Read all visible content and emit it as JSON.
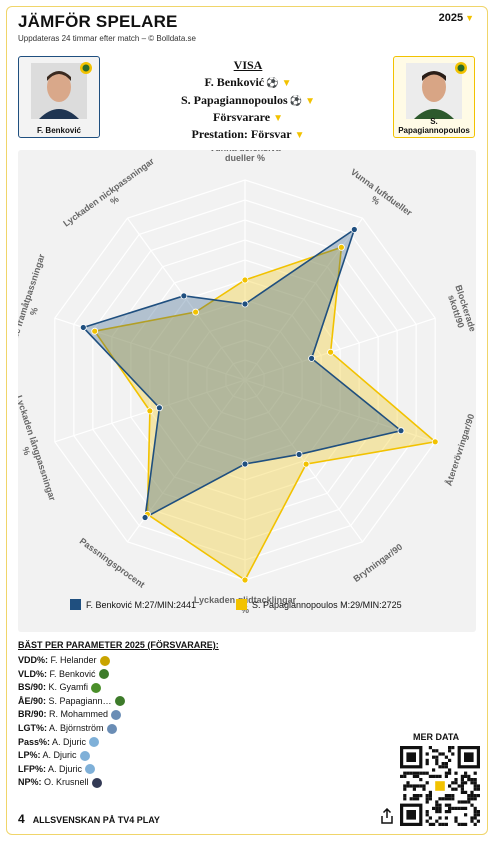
{
  "header": {
    "title": "JÄMFÖR SPELARE",
    "subtitle": "Uppdateras 24 timmar efter match – © Bolldata.se",
    "season": "2025"
  },
  "players": {
    "left": {
      "name": "F. Benković",
      "color": "#1f4f7f"
    },
    "right": {
      "name": "S. Papagiannopoulos",
      "color": "#f2c200"
    }
  },
  "visa": {
    "heading": "VISA",
    "player1": "F. Benković",
    "player2": "S. Papagiannopoulos",
    "position": "Försvarare",
    "prestation": "Prestation: Försvar"
  },
  "chart_data": {
    "type": "radar",
    "axes": [
      "Vunna defensiva dueller %",
      "Vunna luftdueller %",
      "Blockerade skott/90",
      "Återerövringar/90",
      "Brytningar/90",
      "Lyckaden glidtacklingar %",
      "Passningsprocent",
      "Lyckaden långpassningar %",
      "Lyckade framåtpassningar %",
      "Lyckaden nickpassningar %"
    ],
    "range": [
      0,
      1
    ],
    "series": [
      {
        "name": "F. Benković M:27/MIN:2441",
        "color": "#1f4f7f",
        "values": [
          0.38,
          0.93,
          0.35,
          0.82,
          0.46,
          0.42,
          0.85,
          0.45,
          0.85,
          0.52
        ]
      },
      {
        "name": "S. Papagiannopoulos M:29/MIN:2725",
        "color": "#f2c200",
        "values": [
          0.5,
          0.82,
          0.45,
          1.0,
          0.52,
          1.0,
          0.83,
          0.5,
          0.79,
          0.42
        ]
      }
    ]
  },
  "best": {
    "heading": "BÄST PER PARAMETER 2025 (FÖRSVARARE):",
    "rows": [
      {
        "key": "VDD%:",
        "value": "F. Helander",
        "club": "#c9a400"
      },
      {
        "key": "VLD%:",
        "value": "F. Benković",
        "club": "#3d7b2a"
      },
      {
        "key": "BS/90:",
        "value": "K. Gyamfi",
        "club": "#4a8f2a"
      },
      {
        "key": "ÅE/90:",
        "value": "S. Papagiann…",
        "club": "#3d7b2a"
      },
      {
        "key": "BR/90:",
        "value": "R. Mohammed",
        "club": "#6a8db5"
      },
      {
        "key": "LGT%:",
        "value": "A. Björnström",
        "club": "#6a8db5"
      },
      {
        "key": "Pass%:",
        "value": "A. Djuric",
        "club": "#7fb0d8"
      },
      {
        "key": "LP%:",
        "value": "A. Djuric",
        "club": "#7fb0d8"
      },
      {
        "key": "LFP%:",
        "value": "A. Djuric",
        "club": "#7fb0d8"
      },
      {
        "key": "NP%:",
        "value": "O. Krusnell",
        "club": "#333a55"
      }
    ]
  },
  "mer_data": "MER DATA",
  "footer": {
    "logo": "4",
    "text": "ALLSVENSKAN PÅ TV4 PLAY"
  }
}
